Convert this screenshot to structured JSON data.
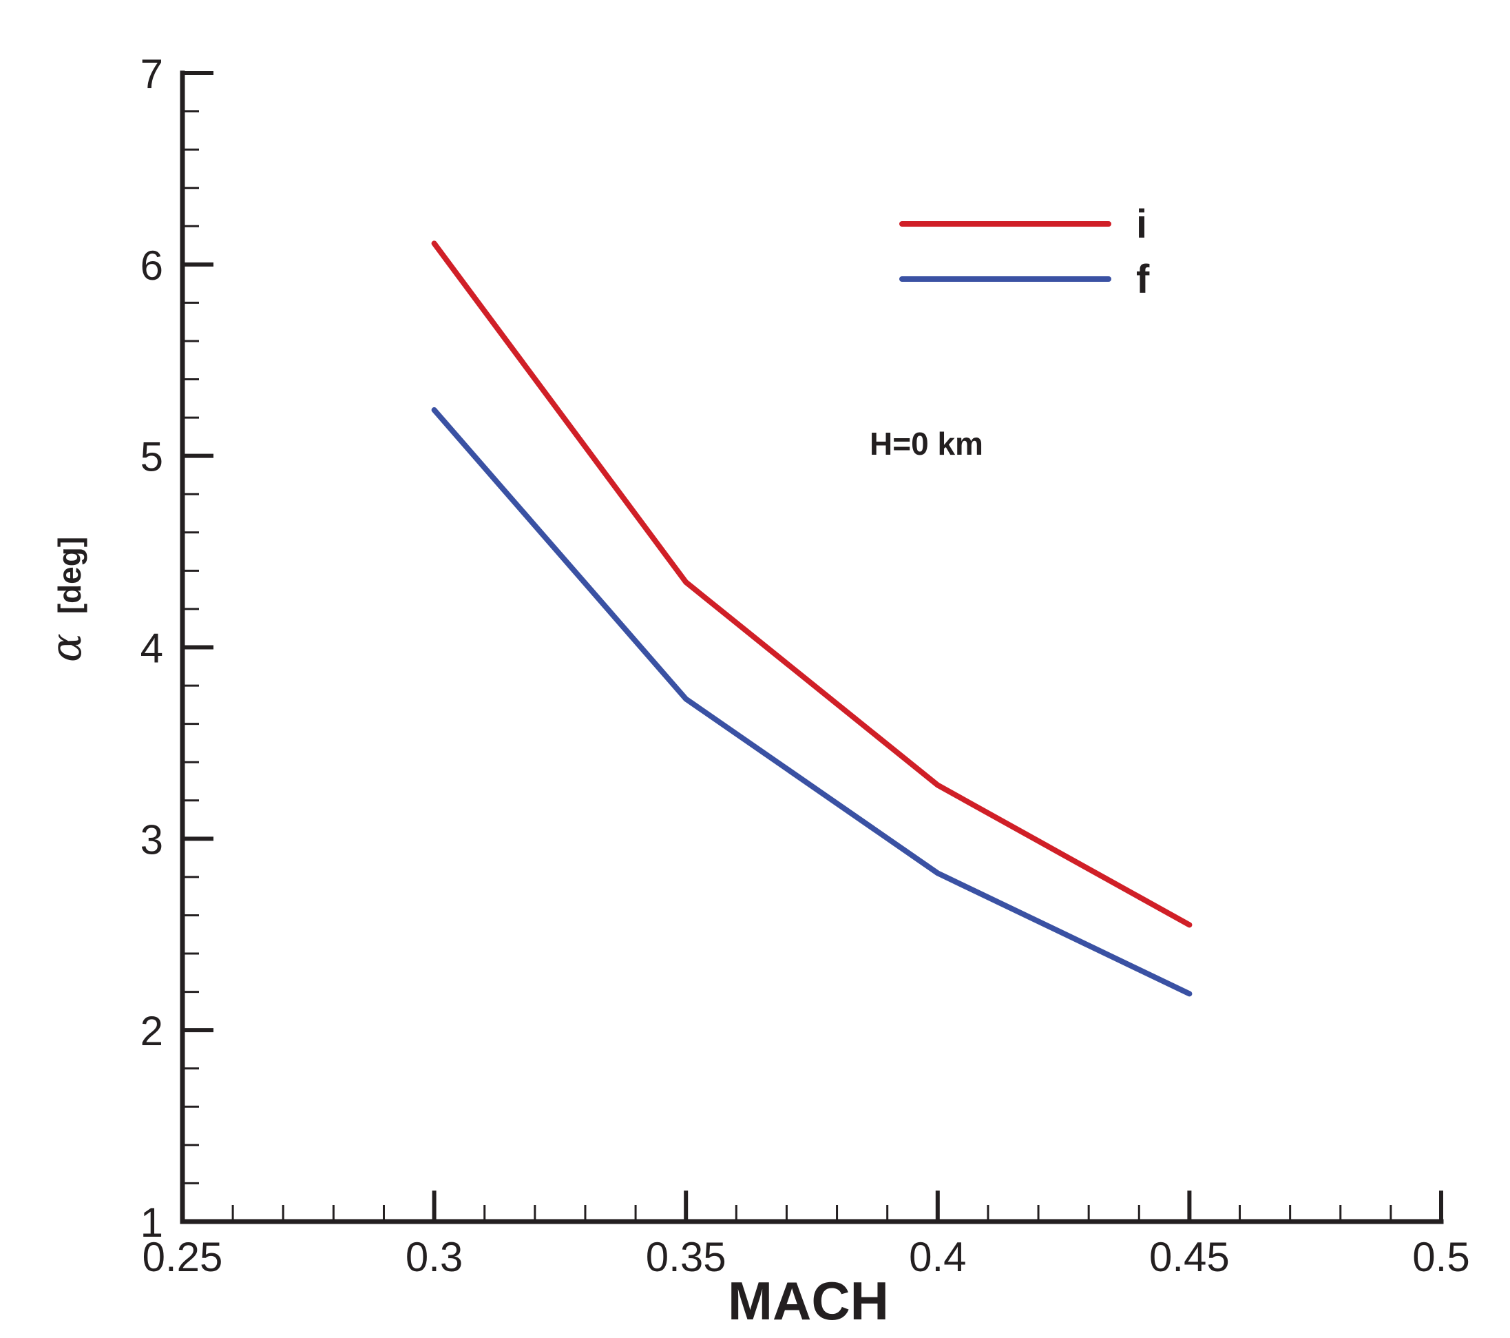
{
  "chart_data": {
    "type": "line",
    "x": [
      0.3,
      0.35,
      0.4,
      0.45
    ],
    "series": [
      {
        "name": "i",
        "color": "#d01f27",
        "values": [
          6.11,
          4.34,
          3.28,
          2.55
        ]
      },
      {
        "name": "f",
        "color": "#3a51a3",
        "values": [
          5.24,
          3.73,
          2.82,
          2.19
        ]
      }
    ],
    "xlabel": "MACH",
    "ylabel_symbol": "α",
    "ylabel_unit": "[deg]",
    "xlim": [
      0.25,
      0.5
    ],
    "ylim": [
      1,
      7
    ],
    "x_ticks": [
      "0.25",
      "0.3",
      "0.35",
      "0.4",
      "0.45",
      "0.5"
    ],
    "y_ticks": [
      "1",
      "2",
      "3",
      "4",
      "5",
      "6",
      "7"
    ],
    "annotation": "H=0 km",
    "legend_position": "top-right",
    "grid": false
  }
}
